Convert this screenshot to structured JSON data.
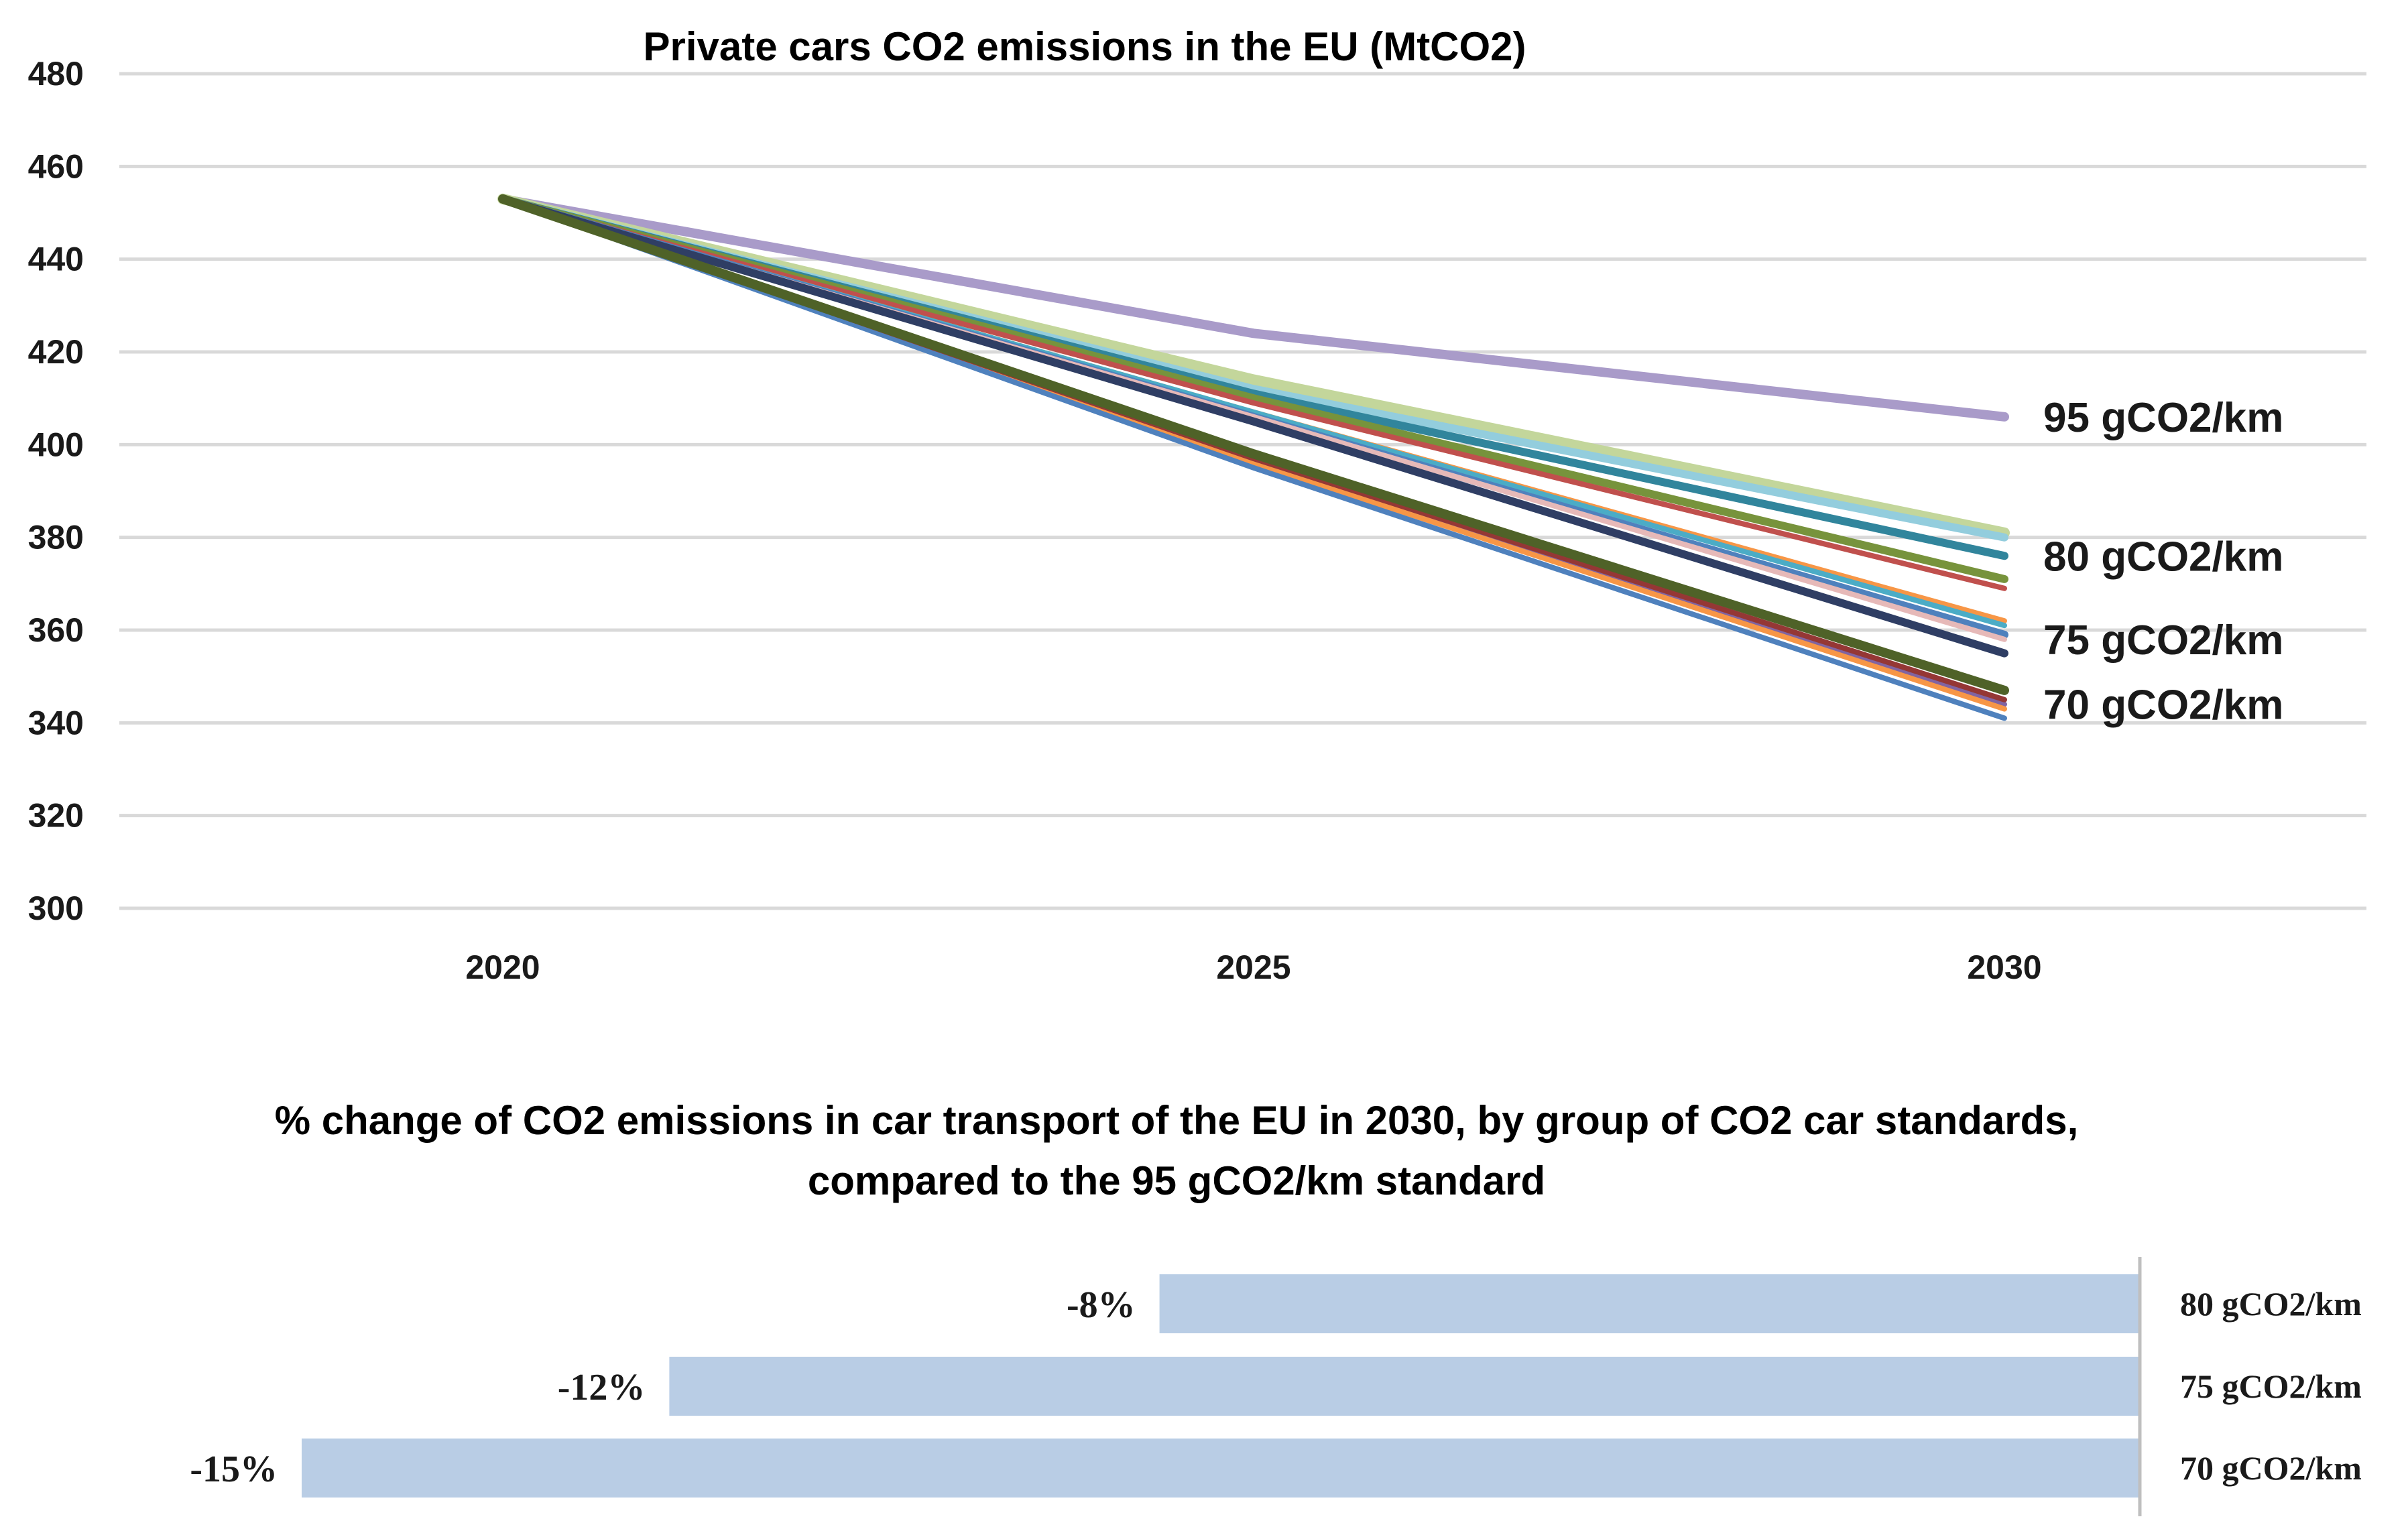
{
  "colors": {
    "grid": "#d9d9d9",
    "bar": "#b9cde5",
    "bar_axis": "#bfbfbf",
    "text": "#1a1a1a"
  },
  "chart_data": [
    {
      "type": "line",
      "title": "Private cars CO2 emissions in the EU (MtCO2)",
      "x": [
        "2020",
        "2025",
        "2030"
      ],
      "ylim": [
        300,
        480
      ],
      "yticks": [
        "300",
        "320",
        "340",
        "360",
        "380",
        "400",
        "420",
        "440",
        "460",
        "480"
      ],
      "grid": true,
      "series": [
        {
          "name": "95 gCO2/km",
          "color": "#a99bc9",
          "width": 14,
          "values": [
            453,
            424,
            406
          ]
        },
        {
          "name": "80 gCO2/km a",
          "color": "#c3d69b",
          "width": 16,
          "values": [
            453,
            414,
            381
          ]
        },
        {
          "name": "80 gCO2/km b",
          "color": "#93cddd",
          "width": 12,
          "values": [
            453,
            412,
            380
          ]
        },
        {
          "name": "80 gCO2/km c",
          "color": "#31859c",
          "width": 12,
          "values": [
            453,
            411,
            376
          ]
        },
        {
          "name": "80 gCO2/km d",
          "color": "#77933c",
          "width": 12,
          "values": [
            453,
            410,
            371
          ]
        },
        {
          "name": "80 gCO2/km e",
          "color": "#c0504d",
          "width": 8,
          "values": [
            453,
            409,
            369
          ]
        },
        {
          "name": "75 gCO2/km a",
          "color": "#f79646",
          "width": 8,
          "values": [
            453,
            407,
            362
          ]
        },
        {
          "name": "75 gCO2/km b",
          "color": "#4bacc6",
          "width": 8,
          "values": [
            453,
            407,
            361
          ]
        },
        {
          "name": "75 gCO2/km c",
          "color": "#4f81bd",
          "width": 12,
          "values": [
            453,
            406,
            359
          ]
        },
        {
          "name": "75 gCO2/km d",
          "color": "#e6b9b8",
          "width": 8,
          "values": [
            453,
            406,
            358
          ]
        },
        {
          "name": "75 gCO2/km e",
          "color": "#2f3e64",
          "width": 12,
          "values": [
            453,
            405,
            355
          ]
        },
        {
          "name": "70 gCO2/km a",
          "color": "#8064a2",
          "width": 8,
          "values": [
            453,
            396,
            344
          ]
        },
        {
          "name": "70 gCO2/km b",
          "color": "#f79646",
          "width": 8,
          "values": [
            453,
            396,
            343
          ]
        },
        {
          "name": "70 gCO2/km c",
          "color": "#4f81bd",
          "width": 8,
          "values": [
            453,
            395,
            341
          ]
        },
        {
          "name": "70 gCO2/km d",
          "color": "#953735",
          "width": 8,
          "values": [
            453,
            397,
            345
          ]
        },
        {
          "name": "70 gCO2/km e",
          "color": "#4f6228",
          "width": 14,
          "values": [
            453,
            398,
            347
          ]
        }
      ],
      "annotations": [
        "95 gCO2/km",
        "80 gCO2/km",
        "75 gCO2/km",
        "70 gCO2/km"
      ]
    },
    {
      "type": "bar",
      "orientation": "horizontal",
      "title_lines": [
        "% change of CO2 emissions in car transport of the EU in 2030, by group of CO2 car standards,",
        "compared to the 95 gCO2/km standard"
      ],
      "categories": [
        "80 gCO2/km",
        "75 gCO2/km",
        "70 gCO2/km"
      ],
      "values": [
        -8,
        -12,
        -15
      ],
      "value_labels": [
        "-8%",
        "-12%",
        "-15%"
      ]
    }
  ]
}
